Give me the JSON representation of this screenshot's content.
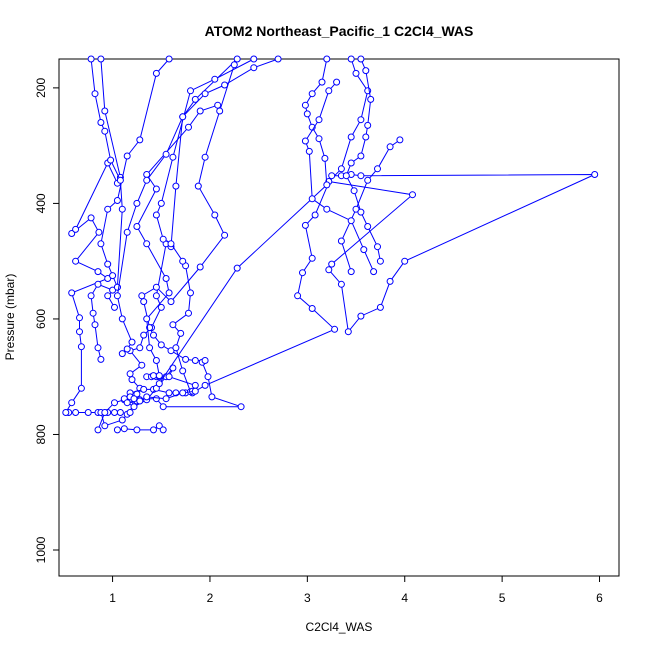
{
  "chart_data": {
    "type": "line",
    "title": "ATOM2 Northeast_Pacific_1 C2Cl4_WAS",
    "xlabel": "C2Cl4_WAS",
    "ylabel": "Pressure (mbar)",
    "xlim": [
      0.45,
      6.2
    ],
    "ylim": [
      1045,
      150
    ],
    "y_reversed": true,
    "grid": false,
    "legend": "none",
    "x_ticks": [
      1,
      2,
      3,
      4,
      5,
      6
    ],
    "y_ticks": [
      200,
      400,
      600,
      800,
      1000
    ],
    "series_style": {
      "color": "#0000ff",
      "marker": "open-circle",
      "line": "solid"
    },
    "series": [
      {
        "points": [
          [
            0.55,
            762
          ],
          [
            0.62,
            762
          ],
          [
            0.75,
            762
          ],
          [
            0.85,
            762
          ],
          [
            0.95,
            762
          ],
          [
            1.02,
            762
          ],
          [
            1.08,
            762
          ]
        ]
      },
      {
        "points": [
          [
            0.52,
            762
          ],
          [
            0.58,
            745
          ],
          [
            0.68,
            720
          ],
          [
            0.68,
            648
          ],
          [
            0.66,
            622
          ],
          [
            0.66,
            598
          ],
          [
            0.58,
            555
          ],
          [
            0.95,
            530
          ],
          [
            0.85,
            518
          ],
          [
            0.62,
            500
          ],
          [
            0.86,
            450
          ],
          [
            0.78,
            425
          ],
          [
            0.58,
            452
          ],
          [
            0.62,
            445
          ],
          [
            0.95,
            330
          ],
          [
            1.05,
            365
          ],
          [
            1.08,
            355
          ],
          [
            0.92,
            240
          ],
          [
            0.88,
            150
          ]
        ]
      },
      {
        "points": [
          [
            0.88,
            762
          ],
          [
            0.92,
            785
          ],
          [
            1.1,
            775
          ],
          [
            1.15,
            765
          ],
          [
            1.18,
            762
          ],
          [
            1.22,
            738
          ],
          [
            1.25,
            730
          ],
          [
            1.28,
            720
          ],
          [
            1.2,
            705
          ],
          [
            1.18,
            695
          ],
          [
            1.3,
            680
          ],
          [
            1.18,
            655
          ],
          [
            1.28,
            650
          ],
          [
            1.32,
            628
          ],
          [
            1.4,
            615
          ],
          [
            1.5,
            580
          ],
          [
            1.45,
            560
          ],
          [
            1.55,
            470
          ],
          [
            1.6,
            475
          ],
          [
            1.65,
            370
          ],
          [
            1.72,
            250
          ],
          [
            1.85,
            220
          ],
          [
            2.28,
            150
          ]
        ]
      },
      {
        "points": [
          [
            1.05,
            792
          ],
          [
            1.12,
            790
          ],
          [
            1.25,
            792
          ],
          [
            1.42,
            792
          ],
          [
            1.48,
            785
          ],
          [
            1.52,
            792
          ]
        ]
      },
      {
        "points": [
          [
            0.85,
            792
          ],
          [
            0.92,
            762
          ],
          [
            1.02,
            745
          ],
          [
            1.12,
            740
          ],
          [
            1.18,
            740
          ],
          [
            1.25,
            742
          ],
          [
            1.35,
            738
          ],
          [
            1.45,
            738
          ],
          [
            1.52,
            752
          ],
          [
            2.32,
            752
          ],
          [
            2.02,
            735
          ],
          [
            1.98,
            700
          ],
          [
            1.92,
            675
          ],
          [
            1.95,
            672
          ],
          [
            1.85,
            672
          ],
          [
            1.75,
            670
          ],
          [
            1.6,
            655
          ],
          [
            1.5,
            645
          ],
          [
            1.42,
            628
          ],
          [
            1.38,
            615
          ],
          [
            1.32,
            570
          ],
          [
            1.3,
            560
          ],
          [
            1.45,
            545
          ],
          [
            1.6,
            570
          ],
          [
            1.9,
            510
          ],
          [
            2.15,
            455
          ],
          [
            2.05,
            420
          ],
          [
            1.88,
            370
          ],
          [
            1.95,
            320
          ],
          [
            2.1,
            240
          ],
          [
            2.25,
            160
          ]
        ]
      },
      {
        "points": [
          [
            1.12,
            738
          ],
          [
            1.18,
            728
          ],
          [
            1.32,
            722
          ],
          [
            1.42,
            722
          ],
          [
            1.58,
            728
          ],
          [
            1.65,
            728
          ],
          [
            1.75,
            728
          ],
          [
            1.82,
            728
          ],
          [
            1.8,
            726
          ],
          [
            1.72,
            690
          ],
          [
            1.65,
            650
          ],
          [
            1.7,
            625
          ],
          [
            1.62,
            610
          ],
          [
            1.78,
            590
          ],
          [
            1.8,
            555
          ],
          [
            1.75,
            508
          ],
          [
            1.72,
            500
          ],
          [
            1.6,
            470
          ],
          [
            1.52,
            462
          ],
          [
            1.45,
            420
          ],
          [
            1.5,
            400
          ],
          [
            1.62,
            320
          ],
          [
            1.8,
            205
          ],
          [
            2.05,
            185
          ],
          [
            2.45,
            150
          ]
        ]
      },
      {
        "points": [
          [
            1.18,
            735
          ],
          [
            1.22,
            738
          ],
          [
            1.28,
            740
          ],
          [
            1.15,
            745
          ],
          [
            1.22,
            752
          ],
          [
            1.35,
            740
          ],
          [
            1.45,
            720
          ],
          [
            1.55,
            700
          ],
          [
            1.62,
            685
          ],
          [
            1.58,
            700
          ],
          [
            1.85,
            715
          ],
          [
            1.82,
            725
          ]
        ]
      },
      {
        "points": [
          [
            1.35,
            700
          ],
          [
            1.4,
            700
          ],
          [
            1.45,
            700
          ],
          [
            1.48,
            700
          ]
        ]
      },
      {
        "points": [
          [
            1.42,
            698
          ],
          [
            1.48,
            698
          ],
          [
            1.45,
            672
          ],
          [
            1.38,
            650
          ],
          [
            1.35,
            600
          ],
          [
            1.58,
            555
          ],
          [
            1.55,
            530
          ],
          [
            1.35,
            470
          ],
          [
            1.25,
            440
          ],
          [
            1.45,
            375
          ],
          [
            1.35,
            350
          ],
          [
            1.78,
            268
          ],
          [
            1.9,
            240
          ],
          [
            2.08,
            230
          ]
        ]
      },
      {
        "points": [
          [
            1.02,
            580
          ],
          [
            0.95,
            560
          ],
          [
            1.05,
            545
          ],
          [
            1.0,
            525
          ],
          [
            0.95,
            505
          ],
          [
            0.88,
            470
          ],
          [
            0.95,
            410
          ],
          [
            1.05,
            395
          ],
          [
            1.15,
            318
          ],
          [
            1.28,
            290
          ],
          [
            1.45,
            175
          ],
          [
            1.58,
            150
          ]
        ]
      },
      {
        "points": [
          [
            0.88,
            670
          ],
          [
            0.85,
            650
          ],
          [
            0.82,
            610
          ],
          [
            0.8,
            590
          ],
          [
            0.78,
            560
          ],
          [
            0.85,
            540
          ],
          [
            1.0,
            550
          ],
          [
            1.05,
            545
          ],
          [
            1.1,
            410
          ],
          [
            1.08,
            360
          ],
          [
            0.98,
            325
          ],
          [
            0.92,
            275
          ],
          [
            0.88,
            260
          ],
          [
            0.82,
            210
          ],
          [
            0.78,
            150
          ]
        ]
      },
      {
        "points": [
          [
            1.1,
            660
          ],
          [
            1.15,
            652
          ],
          [
            1.2,
            640
          ],
          [
            1.1,
            600
          ],
          [
            1.05,
            560
          ],
          [
            1.15,
            450
          ],
          [
            1.25,
            400
          ],
          [
            1.35,
            360
          ],
          [
            1.55,
            315
          ],
          [
            1.72,
            250
          ],
          [
            1.95,
            210
          ],
          [
            2.15,
            195
          ],
          [
            2.45,
            165
          ],
          [
            2.7,
            150
          ]
        ]
      },
      {
        "points": [
          [
            1.28,
            742
          ],
          [
            1.35,
            735
          ],
          [
            1.55,
            738
          ],
          [
            1.72,
            728
          ],
          [
            1.85,
            725
          ],
          [
            1.95,
            715
          ],
          [
            3.28,
            618
          ],
          [
            3.05,
            582
          ],
          [
            2.9,
            560
          ],
          [
            2.95,
            520
          ],
          [
            3.05,
            495
          ],
          [
            2.98,
            438
          ],
          [
            3.08,
            420
          ],
          [
            3.25,
            352
          ],
          [
            3.35,
            352
          ],
          [
            3.45,
            350
          ],
          [
            3.55,
            352
          ],
          [
            5.95,
            350
          ],
          [
            4.0,
            500
          ],
          [
            3.85,
            535
          ],
          [
            3.75,
            580
          ],
          [
            3.55,
            595
          ],
          [
            3.42,
            622
          ],
          [
            3.35,
            540
          ],
          [
            3.22,
            515
          ],
          [
            3.25,
            505
          ],
          [
            4.08,
            385
          ],
          [
            3.22,
            362
          ],
          [
            3.35,
            340
          ],
          [
            3.45,
            285
          ],
          [
            3.55,
            255
          ],
          [
            3.62,
            205
          ],
          [
            3.5,
            175
          ],
          [
            3.45,
            150
          ]
        ]
      },
      {
        "points": [
          [
            1.48,
            712
          ],
          [
            2.28,
            512
          ],
          [
            3.2,
            368
          ],
          [
            3.18,
            322
          ],
          [
            3.12,
            288
          ],
          [
            3.05,
            268
          ],
          [
            3.0,
            245
          ],
          [
            2.98,
            230
          ],
          [
            3.05,
            210
          ],
          [
            3.15,
            190
          ],
          [
            3.2,
            150
          ]
        ]
      },
      {
        "points": [
          [
            3.45,
            518
          ],
          [
            3.35,
            465
          ],
          [
            3.5,
            410
          ],
          [
            3.62,
            360
          ],
          [
            3.72,
            340
          ],
          [
            3.85,
            302
          ],
          [
            3.95,
            290
          ]
        ]
      },
      {
        "points": [
          [
            3.68,
            518
          ],
          [
            3.58,
            480
          ],
          [
            3.45,
            430
          ],
          [
            3.2,
            410
          ],
          [
            3.05,
            392
          ],
          [
            3.02,
            310
          ],
          [
            2.98,
            292
          ],
          [
            3.12,
            255
          ],
          [
            3.22,
            205
          ],
          [
            3.3,
            190
          ]
        ]
      },
      {
        "points": [
          [
            3.75,
            500
          ],
          [
            3.72,
            475
          ],
          [
            3.62,
            440
          ],
          [
            3.55,
            415
          ],
          [
            3.48,
            378
          ],
          [
            3.4,
            352
          ],
          [
            3.45,
            330
          ],
          [
            3.55,
            318
          ],
          [
            3.6,
            285
          ],
          [
            3.62,
            265
          ],
          [
            3.65,
            220
          ],
          [
            3.6,
            170
          ],
          [
            3.55,
            150
          ]
        ]
      }
    ]
  }
}
